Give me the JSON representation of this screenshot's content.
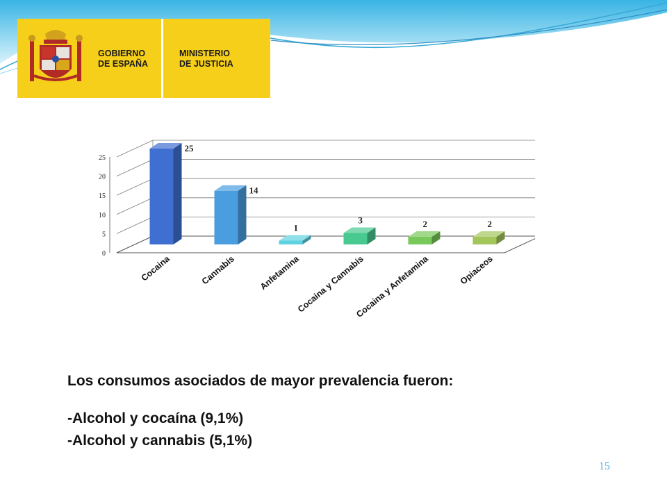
{
  "logo": {
    "line1": "GOBIERNO",
    "line2": "DE ESPAÑA",
    "line3": "MINISTERIO",
    "line4": "DE JUSTICIA"
  },
  "colors": {
    "accent_wave": "#4fb8e6",
    "logo_yellow": "#f6cf1a",
    "page_number": "#5aaedc"
  },
  "chart_data": {
    "type": "bar",
    "style": "3d-column",
    "categories": [
      "Cocaina",
      "Cannabis",
      "Anfetamina",
      "Cocaina y Cannabis",
      "Cocaina y Anfetamina",
      "Opiaceos"
    ],
    "values": [
      25,
      14,
      1,
      3,
      2,
      2
    ],
    "data_labels": [
      "25",
      "14",
      "1",
      "3",
      "2",
      "2"
    ],
    "bar_colors": [
      "#3f6fd1",
      "#4a9ee0",
      "#5fd2e2",
      "#48c98f",
      "#79c95a",
      "#a3c65c"
    ],
    "ylim": [
      0,
      25
    ],
    "yticks": [
      "0",
      "5",
      "10",
      "15",
      "20",
      "25"
    ],
    "grid": true,
    "title": "",
    "xlabel": "",
    "ylabel": ""
  },
  "text": {
    "summary_heading": "Los consumos asociados de mayor prevalencia fueron:",
    "item1": "-Alcohol y cocaína (9,1%)",
    "item2": "-Alcohol y cannabis (5,1%)"
  },
  "page_number": "15"
}
